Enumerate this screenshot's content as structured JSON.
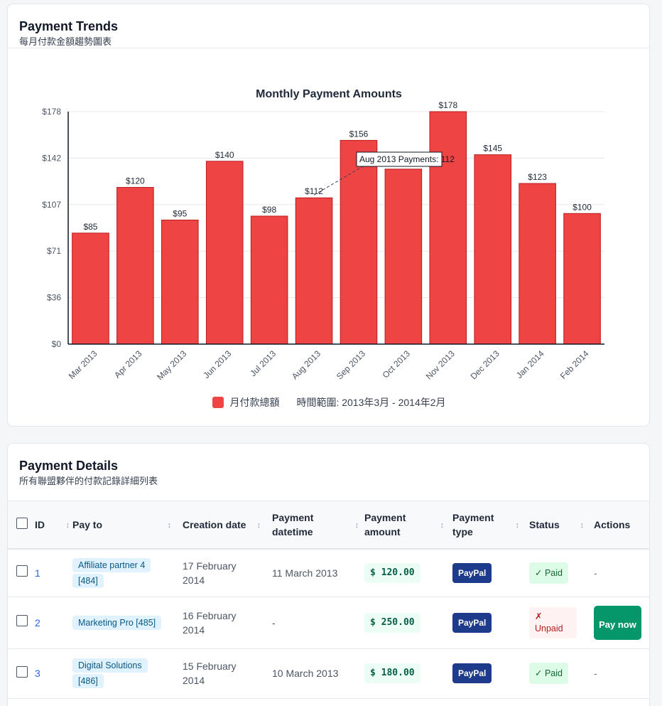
{
  "trends": {
    "title": "Payment Trends",
    "subtitle": "每月付款金額趨勢圖表",
    "legend_label": "月付款總額",
    "legend_range": "時間範圍: 2013年3月 - 2014年2月",
    "tooltip": "Aug 2013 Payments: 112"
  },
  "chart_data": {
    "type": "bar",
    "title": "Monthly Payment Amounts",
    "categories": [
      "Mar 2013",
      "Apr 2013",
      "May 2013",
      "Jun 2013",
      "Jul 2013",
      "Aug 2013",
      "Sep 2013",
      "Oct 2013",
      "Nov 2013",
      "Dec 2013",
      "Jan 2014",
      "Feb 2014"
    ],
    "values": [
      85,
      120,
      95,
      140,
      98,
      112,
      156,
      134,
      178,
      145,
      123,
      100
    ],
    "data_labels": [
      "$85",
      "$120",
      "$95",
      "$140",
      "$98",
      "$112",
      "$156",
      "",
      "$178",
      "$145",
      "$123",
      "$100"
    ],
    "y_ticks": [
      "$0",
      "$36",
      "$71",
      "$107",
      "$142",
      "$178"
    ],
    "ylim": [
      0,
      178
    ],
    "grid": true,
    "legend": "bottom-center",
    "bar_color": "#ef4444"
  },
  "details": {
    "title": "Payment Details",
    "subtitle": "所有聯盟夥伴的付款記錄詳細列表",
    "columns": {
      "id": "ID",
      "pay_to": "Pay to",
      "creation_date": "Creation date",
      "payment_datetime": "Payment datetime",
      "payment_amount": "Payment amount",
      "payment_type": "Payment type",
      "status": "Status",
      "actions": "Actions"
    },
    "rows": [
      {
        "id": "1",
        "pay_to": "Affiliate partner 4 [484]",
        "creation_date": "17 February 2014",
        "payment_datetime": "11 March 2013",
        "amount": "$ 120.00",
        "type": "PayPal",
        "status": "✓ Paid",
        "action": "-"
      },
      {
        "id": "2",
        "pay_to": "Marketing Pro [485]",
        "creation_date": "16 February 2014",
        "payment_datetime": "-",
        "amount": "$ 250.00",
        "type": "PayPal",
        "status": "✗ Unpaid",
        "action": "Pay now"
      },
      {
        "id": "3",
        "pay_to": "Digital Solutions [486]",
        "creation_date": "15 February 2014",
        "payment_datetime": "10 March 2013",
        "amount": "$ 180.00",
        "type": "PayPal",
        "status": "✓ Paid",
        "action": "-"
      }
    ]
  }
}
